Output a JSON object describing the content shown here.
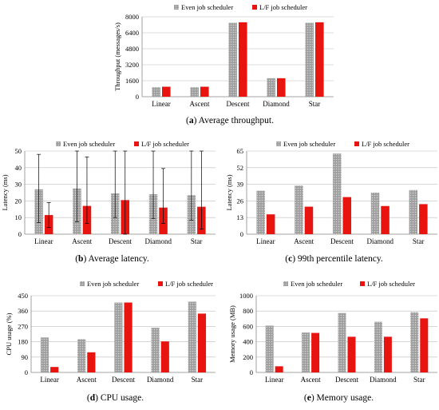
{
  "colors": {
    "even": "#9e9e9e",
    "even_dot": "#d4d4d4",
    "lf": "#e8140f",
    "grid": "#bdbdbd",
    "axis": "#888888"
  },
  "chart_data": [
    {
      "type": "bar",
      "caption_letter": "a",
      "caption_text": " Average throughput.",
      "ylabel": "Throughput (messages/s)",
      "categories": [
        "Linear",
        "Ascent",
        "Descent",
        "Diamond",
        "Star"
      ],
      "ylim": [
        0,
        8000
      ],
      "yticks": [
        "0",
        "1600",
        "3200",
        "4800",
        "6400",
        "8000"
      ],
      "grid": true,
      "legend_position": "top",
      "series": [
        {
          "name": "Even job scheduler",
          "values": [
            950,
            950,
            7400,
            1850,
            7400
          ]
        },
        {
          "name": "L/F job scheduler",
          "values": [
            1000,
            1000,
            7450,
            1850,
            7450
          ]
        }
      ]
    },
    {
      "type": "bar",
      "caption_letter": "b",
      "caption_text": " Average latency.",
      "ylabel": "Latency (ms)",
      "categories": [
        "Linear",
        "Ascent",
        "Descent",
        "Diamond",
        "Star"
      ],
      "ylim": [
        0,
        50
      ],
      "yticks": [
        "0",
        "10",
        "20",
        "30",
        "40",
        "50"
      ],
      "grid": true,
      "legend_position": "top",
      "series": [
        {
          "name": "Even job scheduler",
          "values": [
            27,
            27.5,
            24.5,
            24,
            23.5
          ],
          "err_low": [
            7,
            7.5,
            10,
            9.5,
            8.5
          ],
          "err_high": [
            48,
            50,
            50,
            50,
            50
          ]
        },
        {
          "name": "L/F job scheduler",
          "values": [
            11.5,
            17,
            20.5,
            16,
            16.5
          ],
          "err_low": [
            4,
            6.5,
            0,
            6.5,
            3
          ],
          "err_high": [
            19,
            46.5,
            50,
            39.5,
            50
          ]
        }
      ]
    },
    {
      "type": "bar",
      "caption_letter": "c",
      "caption_text": " 99th percentile latency.",
      "ylabel": "Latency (ms)",
      "categories": [
        "Linear",
        "Ascent",
        "Descent",
        "Diamond",
        "Star"
      ],
      "ylim": [
        0,
        65
      ],
      "yticks": [
        "0",
        "13",
        "26",
        "39",
        "52",
        "65"
      ],
      "grid": true,
      "legend_position": "top",
      "series": [
        {
          "name": "Even job scheduler",
          "values": [
            34,
            38,
            63,
            32.5,
            34.5
          ]
        },
        {
          "name": "L/F job scheduler",
          "values": [
            15.5,
            21.5,
            29,
            22,
            23.5
          ]
        }
      ]
    },
    {
      "type": "bar",
      "caption_letter": "d",
      "caption_text": " CPU usage.",
      "ylabel": "CPU usage (%)",
      "categories": [
        "Linear",
        "Ascent",
        "Descent",
        "Diamond",
        "Star"
      ],
      "ylim": [
        0,
        450
      ],
      "yticks": [
        "0",
        "90",
        "180",
        "270",
        "360",
        "450"
      ],
      "grid": true,
      "legend_position": "top",
      "series": [
        {
          "name": "Even job scheduler",
          "values": [
            205,
            195,
            410,
            262,
            415
          ]
        },
        {
          "name": "L/F job scheduler",
          "values": [
            32,
            118,
            410,
            182,
            345
          ]
        }
      ]
    },
    {
      "type": "bar",
      "caption_letter": "e",
      "caption_text": " Memory usage.",
      "ylabel": "Memory usage (MB)",
      "categories": [
        "Linear",
        "Ascent",
        "Descent",
        "Diamond",
        "Star"
      ],
      "ylim": [
        0,
        1000
      ],
      "yticks": [
        "0",
        "200",
        "400",
        "600",
        "800",
        "1000"
      ],
      "grid": true,
      "legend_position": "top",
      "series": [
        {
          "name": "Even job scheduler",
          "values": [
            610,
            520,
            775,
            660,
            785
          ]
        },
        {
          "name": "L/F job scheduler",
          "values": [
            80,
            515,
            465,
            465,
            705
          ]
        }
      ]
    }
  ]
}
